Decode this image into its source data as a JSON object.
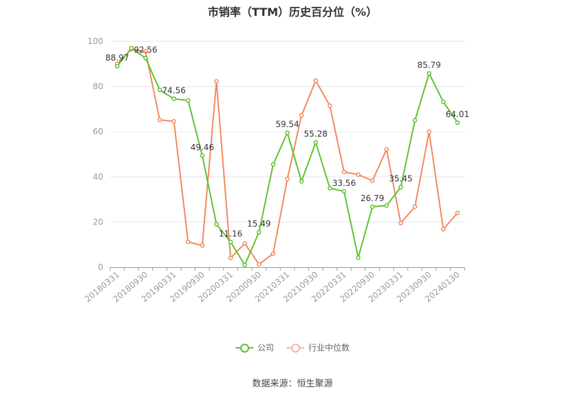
{
  "chart_data": {
    "type": "line",
    "title": "市销率（TTM）历史百分位（%）",
    "categories": [
      "20180331",
      "20180630",
      "20180930",
      "20181231",
      "20190331",
      "20190630",
      "20190930",
      "20191231",
      "20200331",
      "20200630",
      "20200930",
      "20201231",
      "20210331",
      "20210630",
      "20210930",
      "20211231",
      "20220331",
      "20220630",
      "20220930",
      "20221231",
      "20230331",
      "20230630",
      "20230930",
      "20231231",
      "20240130"
    ],
    "x_tick_labels": [
      "20180331",
      "20180930",
      "20190331",
      "20190930",
      "20200331",
      "20200930",
      "20210331",
      "20210930",
      "20220331",
      "20220930",
      "20230331",
      "20230930",
      "20240130"
    ],
    "ylim": [
      0,
      100
    ],
    "y_ticks": [
      0,
      20,
      40,
      60,
      80,
      100
    ],
    "grid": true,
    "legend_position": "bottom-center",
    "series": [
      {
        "name": "公司",
        "color": "#5fc22f",
        "values": [
          88.97,
          97.0,
          92.56,
          78.5,
          74.56,
          73.8,
          49.46,
          19.0,
          11.16,
          1.0,
          15.49,
          45.5,
          59.54,
          38.0,
          55.28,
          35.0,
          33.56,
          4.2,
          26.79,
          27.3,
          35.45,
          65.0,
          85.79,
          73.2,
          64.01
        ],
        "labels": [
          "88.97",
          null,
          "92.56",
          null,
          "74.56",
          null,
          "49.46",
          null,
          "11.16",
          null,
          "15.49",
          null,
          "59.54",
          null,
          "55.28",
          null,
          "33.56",
          null,
          "26.79",
          null,
          "35.45",
          null,
          "85.79",
          null,
          "64.01"
        ]
      },
      {
        "name": "行业中位数",
        "color": "#f2895e",
        "values": [
          90.0,
          96.5,
          95.5,
          65.2,
          64.6,
          11.2,
          9.6,
          82.3,
          4.1,
          10.5,
          1.3,
          6.0,
          39.0,
          67.2,
          82.6,
          71.5,
          42.2,
          41.0,
          38.3,
          52.2,
          19.5,
          26.8,
          60.0,
          16.8,
          24.0
        ]
      }
    ]
  },
  "legend": {
    "company": "公司",
    "industry": "行业中位数"
  },
  "source": "数据来源：恒生聚源"
}
